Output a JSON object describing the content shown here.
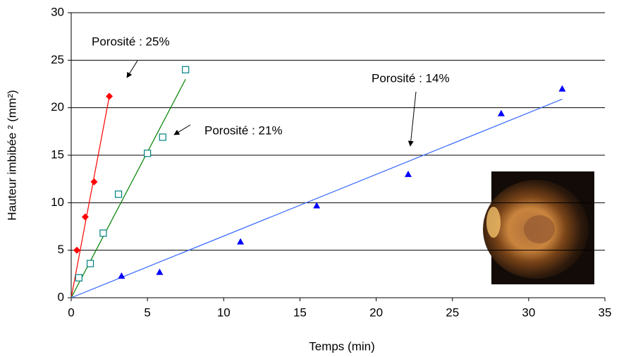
{
  "chart_data": {
    "type": "scatter",
    "xlabel": "Temps (min)",
    "ylabel": "Hauteur imbibée ²  (mm²)",
    "xlim": [
      0,
      35
    ],
    "ylim": [
      0,
      30
    ],
    "xticks": [
      0,
      5,
      10,
      15,
      20,
      25,
      30,
      35
    ],
    "yticks": [
      0,
      5,
      10,
      15,
      20,
      25,
      30
    ],
    "grid": true,
    "series": [
      {
        "color": "#ff0000",
        "marker": "diamond",
        "x": [
          0.37,
          0.92,
          1.5,
          2.5
        ],
        "values": [
          5.0,
          8.5,
          12.2,
          21.2
        ],
        "fit_x": [
          0,
          2.5
        ],
        "fit_y": [
          0,
          21.2
        ]
      },
      {
        "color": "#008080",
        "line_color": "#008000",
        "marker": "square",
        "x": [
          0.5,
          1.25,
          2.1,
          3.1,
          5.0,
          6.0,
          7.5
        ],
        "values": [
          2.1,
          3.6,
          6.8,
          10.9,
          15.2,
          16.9,
          24.0
        ],
        "fit_x": [
          0,
          7.5
        ],
        "fit_y": [
          0,
          23.0
        ]
      },
      {
        "color": "#0000ff",
        "line_color": "#3366ff",
        "marker": "triangle",
        "x": [
          3.3,
          5.8,
          11.1,
          16.1,
          22.1,
          28.2,
          32.2
        ],
        "values": [
          2.3,
          2.7,
          5.9,
          9.7,
          13.0,
          19.4,
          22.0
        ],
        "fit_x": [
          0,
          32.2
        ],
        "fit_y": [
          0,
          20.9
        ]
      }
    ],
    "annotations": [
      "Porosité : 25%",
      "Porosité : 21%",
      "Porosité : 14%"
    ]
  }
}
